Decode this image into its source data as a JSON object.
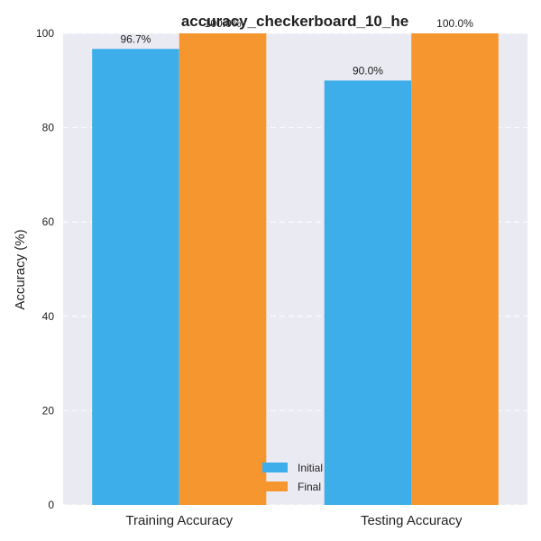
{
  "chart_data": {
    "type": "bar",
    "title": "accuracy_checkerboard_10_he",
    "xlabel": "",
    "ylabel": "Accuracy (%)",
    "categories": [
      "Training Accuracy",
      "Testing Accuracy"
    ],
    "series": [
      {
        "name": "Initial",
        "values": [
          96.7,
          90.0
        ],
        "labels": [
          "96.7%",
          "90.0%"
        ],
        "color": "#3daeea"
      },
      {
        "name": "Final",
        "values": [
          100.0,
          100.0
        ],
        "labels": [
          "100.0%",
          "100.0%"
        ],
        "color": "#f5962e"
      }
    ],
    "ylim": [
      0,
      100
    ],
    "yticks": [
      "0",
      "20",
      "40",
      "60",
      "80",
      "100"
    ],
    "grid": true,
    "grid_axis": "y",
    "legend_position": "lower center",
    "background": "#eaeaf2"
  }
}
